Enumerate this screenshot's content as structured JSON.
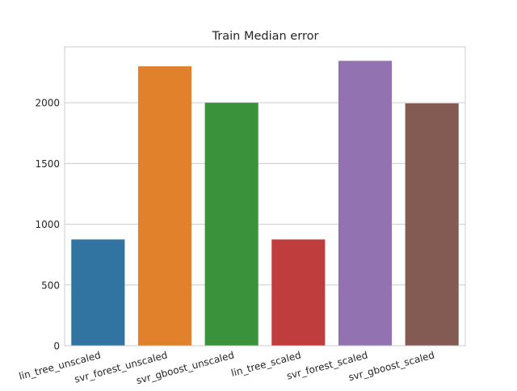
{
  "chart_data": {
    "type": "bar",
    "title": "Train Median error",
    "xlabel": "",
    "ylabel": "",
    "categories": [
      "lin_tree_unscaled",
      "svr_forest_unscaled",
      "svr_gboost_unscaled",
      "lin_tree_scaled",
      "svr_forest_scaled",
      "svr_gboost_scaled"
    ],
    "values": [
      875,
      2300,
      2000,
      875,
      2345,
      1995
    ],
    "colors": [
      "#3274a1",
      "#e1812c",
      "#3a923a",
      "#c03d3e",
      "#9372b2",
      "#845b53"
    ],
    "ylim": [
      0,
      2460
    ],
    "yticks": [
      0,
      500,
      1000,
      1500,
      2000
    ],
    "ytick_labels": [
      "0",
      "500",
      "1000",
      "1500",
      "2000"
    ],
    "grid": "horizontal",
    "legend": "none"
  }
}
